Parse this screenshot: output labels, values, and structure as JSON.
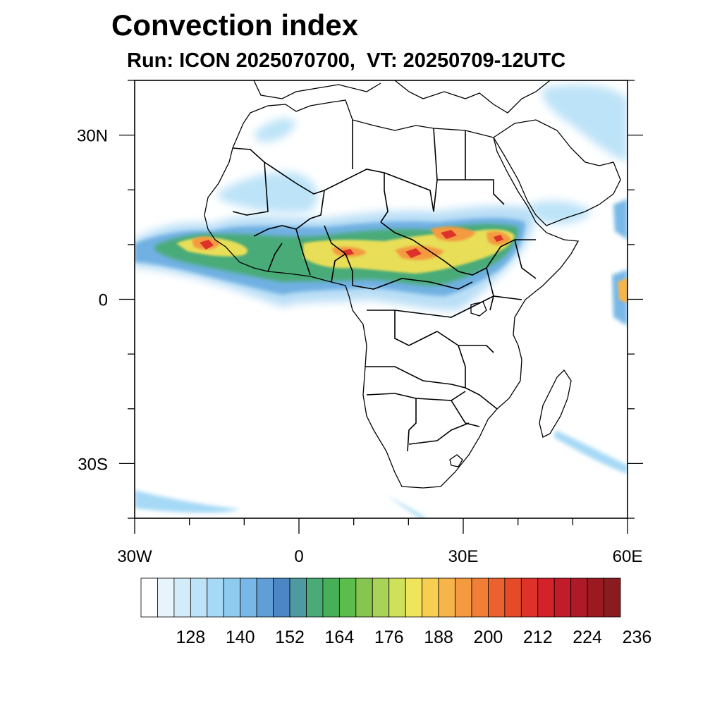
{
  "header": {
    "title": "Convection index",
    "subtitle": "Run: ICON 2025070700,  VT: 20250709-12UTC"
  },
  "map": {
    "lat_ticks": [
      {
        "lat": 30,
        "label": "30N"
      },
      {
        "lat": 0,
        "label": "0"
      },
      {
        "lat": -30,
        "label": "30S"
      }
    ],
    "lon_ticks": [
      {
        "lon": -30,
        "label": "30W"
      },
      {
        "lon": 0,
        "label": "0"
      },
      {
        "lon": 30,
        "label": "30E"
      },
      {
        "lon": 60,
        "label": "60E"
      }
    ],
    "extent": {
      "lon_min": -30,
      "lon_max": 60,
      "lat_min": -40,
      "lat_max": 40
    }
  },
  "colorbar": {
    "colors": [
      "#ffffff",
      "#e8f4fc",
      "#d2ecfa",
      "#bde3f8",
      "#a6d9f6",
      "#8fcaef",
      "#78b8e6",
      "#5f9fd6",
      "#4d86c4",
      "#4e9aa0",
      "#4aab78",
      "#45b055",
      "#5bbd4c",
      "#86c550",
      "#aad258",
      "#cfe05a",
      "#f0e45a",
      "#f7cd52",
      "#f6b44a",
      "#f49a40",
      "#f07e36",
      "#ec622e",
      "#e54a29",
      "#dd3229",
      "#d32229",
      "#c21c2a",
      "#ae1a28",
      "#9b1a22",
      "#8a1b1e"
    ],
    "labels": [
      "128",
      "140",
      "152",
      "164",
      "176",
      "188",
      "200",
      "212",
      "224",
      "236"
    ]
  },
  "legend": {
    "cells": 31
  }
}
